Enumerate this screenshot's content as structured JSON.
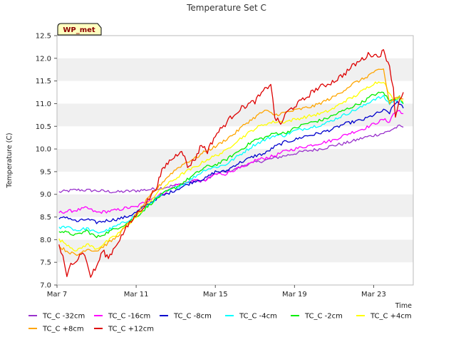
{
  "chart_data": {
    "type": "line",
    "title": "Temperature Set C",
    "xlabel": "Time",
    "ylabel": "Temperature (C)",
    "badge": "WP_met",
    "x_unit": "days since Mar 7",
    "xlim": [
      0,
      18
    ],
    "ylim": [
      7.0,
      12.5
    ],
    "x_ticks": [
      {
        "label": "Mar 7",
        "value": 0
      },
      {
        "label": "Mar 11",
        "value": 4
      },
      {
        "label": "Mar 15",
        "value": 8
      },
      {
        "label": "Mar 19",
        "value": 12
      },
      {
        "label": "Mar 23",
        "value": 16
      }
    ],
    "y_ticks": [
      7.0,
      7.5,
      8.0,
      8.5,
      9.0,
      9.5,
      10.0,
      10.5,
      11.0,
      11.5,
      12.0,
      12.5
    ],
    "grid": "horizontal bands",
    "legend_position": "bottom",
    "series": [
      {
        "name": "TC_C -32cm",
        "color": "#9932cc",
        "points": [
          [
            0.1,
            9.05
          ],
          [
            1,
            9.1
          ],
          [
            2,
            9.08
          ],
          [
            3,
            9.05
          ],
          [
            4,
            9.08
          ],
          [
            5,
            9.12
          ],
          [
            6,
            9.2
          ],
          [
            6.5,
            9.25
          ],
          [
            7,
            9.3
          ],
          [
            7.5,
            9.3
          ],
          [
            8,
            9.45
          ],
          [
            8.5,
            9.5
          ],
          [
            9,
            9.55
          ],
          [
            9.5,
            9.65
          ],
          [
            10,
            9.7
          ],
          [
            10.5,
            9.75
          ],
          [
            11,
            9.8
          ],
          [
            11.5,
            9.85
          ],
          [
            12,
            9.9
          ],
          [
            12.5,
            9.95
          ],
          [
            13,
            9.98
          ],
          [
            13.5,
            10.02
          ],
          [
            14,
            10.08
          ],
          [
            14.5,
            10.12
          ],
          [
            15,
            10.18
          ],
          [
            15.5,
            10.25
          ],
          [
            16,
            10.3
          ],
          [
            16.5,
            10.35
          ],
          [
            16.8,
            10.4
          ],
          [
            17,
            10.45
          ],
          [
            17.3,
            10.5
          ],
          [
            17.5,
            10.48
          ]
        ]
      },
      {
        "name": "TC_C -16cm",
        "color": "#ff00ff",
        "points": [
          [
            0.1,
            8.6
          ],
          [
            1,
            8.65
          ],
          [
            1.5,
            8.7
          ],
          [
            2,
            8.6
          ],
          [
            2.5,
            8.62
          ],
          [
            3,
            8.65
          ],
          [
            3.5,
            8.7
          ],
          [
            4,
            8.72
          ],
          [
            4.5,
            8.85
          ],
          [
            5,
            8.95
          ],
          [
            5.5,
            9.05
          ],
          [
            6,
            9.2
          ],
          [
            6.5,
            9.25
          ],
          [
            7,
            9.3
          ],
          [
            7.5,
            9.3
          ],
          [
            8,
            9.45
          ],
          [
            8.5,
            9.45
          ],
          [
            9,
            9.55
          ],
          [
            9.5,
            9.6
          ],
          [
            10,
            9.75
          ],
          [
            10.5,
            9.8
          ],
          [
            11,
            9.85
          ],
          [
            11.5,
            9.95
          ],
          [
            12,
            10.0
          ],
          [
            12.5,
            10.05
          ],
          [
            13,
            10.1
          ],
          [
            13.5,
            10.15
          ],
          [
            14,
            10.2
          ],
          [
            14.5,
            10.3
          ],
          [
            15,
            10.38
          ],
          [
            15.5,
            10.45
          ],
          [
            16,
            10.55
          ],
          [
            16.5,
            10.65
          ],
          [
            16.8,
            10.6
          ],
          [
            17,
            10.78
          ],
          [
            17.3,
            10.85
          ],
          [
            17.5,
            10.78
          ]
        ]
      },
      {
        "name": "TC_C -8cm",
        "color": "#0000cd",
        "points": [
          [
            0.1,
            8.45
          ],
          [
            0.5,
            8.5
          ],
          [
            1,
            8.4
          ],
          [
            1.5,
            8.45
          ],
          [
            2,
            8.38
          ],
          [
            2.5,
            8.42
          ],
          [
            3,
            8.45
          ],
          [
            3.5,
            8.5
          ],
          [
            4,
            8.6
          ],
          [
            4.5,
            8.75
          ],
          [
            5,
            8.9
          ],
          [
            5.5,
            9.0
          ],
          [
            6,
            9.1
          ],
          [
            6.5,
            9.2
          ],
          [
            7,
            9.3
          ],
          [
            7.5,
            9.35
          ],
          [
            8,
            9.5
          ],
          [
            8.5,
            9.5
          ],
          [
            9,
            9.65
          ],
          [
            9.5,
            9.75
          ],
          [
            10,
            9.85
          ],
          [
            10.5,
            9.9
          ],
          [
            11,
            10.05
          ],
          [
            11.5,
            10.15
          ],
          [
            12,
            10.2
          ],
          [
            12.5,
            10.28
          ],
          [
            13,
            10.32
          ],
          [
            13.5,
            10.38
          ],
          [
            14,
            10.45
          ],
          [
            14.5,
            10.55
          ],
          [
            15,
            10.6
          ],
          [
            15.5,
            10.65
          ],
          [
            16,
            10.75
          ],
          [
            16.5,
            10.85
          ],
          [
            16.8,
            10.8
          ],
          [
            17,
            10.95
          ],
          [
            17.2,
            11.05
          ],
          [
            17.5,
            10.9
          ]
        ]
      },
      {
        "name": "TC_C -4cm",
        "color": "#00ffff",
        "points": [
          [
            0.1,
            8.25
          ],
          [
            0.5,
            8.3
          ],
          [
            1,
            8.2
          ],
          [
            1.5,
            8.25
          ],
          [
            2,
            8.15
          ],
          [
            2.5,
            8.2
          ],
          [
            3,
            8.3
          ],
          [
            3.5,
            8.4
          ],
          [
            4,
            8.55
          ],
          [
            4.5,
            8.72
          ],
          [
            5,
            8.9
          ],
          [
            5.5,
            9.05
          ],
          [
            6,
            9.15
          ],
          [
            6.5,
            9.25
          ],
          [
            7,
            9.4
          ],
          [
            7.5,
            9.55
          ],
          [
            8,
            9.6
          ],
          [
            8.5,
            9.65
          ],
          [
            9,
            9.8
          ],
          [
            9.5,
            9.95
          ],
          [
            10,
            10.1
          ],
          [
            10.5,
            10.2
          ],
          [
            11,
            10.3
          ],
          [
            11.5,
            10.3
          ],
          [
            12,
            10.4
          ],
          [
            12.5,
            10.45
          ],
          [
            13,
            10.5
          ],
          [
            13.5,
            10.55
          ],
          [
            14,
            10.65
          ],
          [
            14.5,
            10.75
          ],
          [
            15,
            10.85
          ],
          [
            15.5,
            10.95
          ],
          [
            16,
            11.1
          ],
          [
            16.5,
            11.15
          ],
          [
            16.8,
            11.0
          ],
          [
            17,
            11.05
          ],
          [
            17.3,
            11.1
          ],
          [
            17.5,
            11.0
          ]
        ]
      },
      {
        "name": "TC_C -2cm",
        "color": "#00ee00",
        "points": [
          [
            0.1,
            8.2
          ],
          [
            0.5,
            8.15
          ],
          [
            1,
            8.1
          ],
          [
            1.5,
            8.2
          ],
          [
            2,
            8.05
          ],
          [
            2.5,
            8.15
          ],
          [
            3,
            8.25
          ],
          [
            3.5,
            8.35
          ],
          [
            4,
            8.5
          ],
          [
            4.5,
            8.7
          ],
          [
            5,
            8.9
          ],
          [
            5.5,
            9.05
          ],
          [
            6,
            9.15
          ],
          [
            6.5,
            9.3
          ],
          [
            7,
            9.45
          ],
          [
            7.5,
            9.6
          ],
          [
            8,
            9.65
          ],
          [
            8.5,
            9.75
          ],
          [
            9,
            9.9
          ],
          [
            9.5,
            10.05
          ],
          [
            10,
            10.2
          ],
          [
            10.5,
            10.25
          ],
          [
            11,
            10.35
          ],
          [
            11.5,
            10.35
          ],
          [
            12,
            10.45
          ],
          [
            12.5,
            10.55
          ],
          [
            13,
            10.6
          ],
          [
            13.5,
            10.65
          ],
          [
            14,
            10.75
          ],
          [
            14.5,
            10.85
          ],
          [
            15,
            10.95
          ],
          [
            15.5,
            11.05
          ],
          [
            16,
            11.2
          ],
          [
            16.5,
            11.25
          ],
          [
            16.8,
            11.05
          ],
          [
            17,
            11.1
          ],
          [
            17.3,
            11.15
          ],
          [
            17.5,
            11.0
          ]
        ]
      },
      {
        "name": "TC_C +4cm",
        "color": "#ffff00",
        "points": [
          [
            0.1,
            8.0
          ],
          [
            0.5,
            7.9
          ],
          [
            1,
            7.75
          ],
          [
            1.5,
            7.9
          ],
          [
            2,
            7.8
          ],
          [
            2.5,
            7.95
          ],
          [
            3,
            8.1
          ],
          [
            3.5,
            8.3
          ],
          [
            4,
            8.5
          ],
          [
            4.5,
            8.75
          ],
          [
            5,
            9.0
          ],
          [
            5.5,
            9.2
          ],
          [
            6,
            9.35
          ],
          [
            6.5,
            9.5
          ],
          [
            7,
            9.6
          ],
          [
            7.5,
            9.75
          ],
          [
            8,
            9.85
          ],
          [
            8.5,
            9.95
          ],
          [
            9,
            10.15
          ],
          [
            9.5,
            10.3
          ],
          [
            10,
            10.45
          ],
          [
            10.5,
            10.55
          ],
          [
            11,
            10.6
          ],
          [
            11.5,
            10.6
          ],
          [
            12,
            10.65
          ],
          [
            12.5,
            10.7
          ],
          [
            13,
            10.75
          ],
          [
            13.5,
            10.8
          ],
          [
            14,
            10.9
          ],
          [
            14.5,
            11.05
          ],
          [
            15,
            11.15
          ],
          [
            15.5,
            11.3
          ],
          [
            16,
            11.45
          ],
          [
            16.5,
            11.5
          ],
          [
            16.8,
            11.2
          ],
          [
            17,
            11.1
          ],
          [
            17.3,
            11.15
          ],
          [
            17.5,
            11.05
          ]
        ]
      },
      {
        "name": "TC_C +8cm",
        "color": "#ffa500",
        "points": [
          [
            0.1,
            7.85
          ],
          [
            0.5,
            7.75
          ],
          [
            1,
            7.65
          ],
          [
            1.5,
            7.8
          ],
          [
            2,
            7.75
          ],
          [
            2.5,
            7.9
          ],
          [
            3,
            8.05
          ],
          [
            3.5,
            8.3
          ],
          [
            4,
            8.55
          ],
          [
            4.5,
            8.85
          ],
          [
            5,
            9.1
          ],
          [
            5.5,
            9.35
          ],
          [
            6,
            9.55
          ],
          [
            6.5,
            9.7
          ],
          [
            7,
            9.8
          ],
          [
            7.5,
            9.95
          ],
          [
            8,
            10.05
          ],
          [
            8.5,
            10.2
          ],
          [
            9,
            10.35
          ],
          [
            9.5,
            10.55
          ],
          [
            10,
            10.7
          ],
          [
            10.5,
            10.85
          ],
          [
            11,
            10.75
          ],
          [
            11.5,
            10.8
          ],
          [
            12,
            10.85
          ],
          [
            12.5,
            10.9
          ],
          [
            13,
            10.95
          ],
          [
            13.5,
            11.05
          ],
          [
            14,
            11.15
          ],
          [
            14.5,
            11.3
          ],
          [
            15,
            11.45
          ],
          [
            15.5,
            11.55
          ],
          [
            16,
            11.7
          ],
          [
            16.5,
            11.75
          ],
          [
            16.8,
            11.0
          ],
          [
            17,
            11.1
          ],
          [
            17.3,
            11.15
          ],
          [
            17.5,
            11.1
          ]
        ]
      },
      {
        "name": "TC_C +12cm",
        "color": "#dd0000",
        "points": [
          [
            0.1,
            7.85
          ],
          [
            0.3,
            7.6
          ],
          [
            0.5,
            7.15
          ],
          [
            0.7,
            7.5
          ],
          [
            1,
            7.55
          ],
          [
            1.3,
            7.75
          ],
          [
            1.5,
            7.5
          ],
          [
            1.7,
            7.2
          ],
          [
            2,
            7.4
          ],
          [
            2.3,
            7.75
          ],
          [
            2.6,
            7.6
          ],
          [
            3,
            7.9
          ],
          [
            3.5,
            8.25
          ],
          [
            4,
            8.55
          ],
          [
            4.5,
            8.8
          ],
          [
            5,
            9.15
          ],
          [
            5.3,
            9.5
          ],
          [
            5.6,
            9.7
          ],
          [
            6,
            9.85
          ],
          [
            6.3,
            10.0
          ],
          [
            6.6,
            9.6
          ],
          [
            7,
            9.8
          ],
          [
            7.3,
            10.1
          ],
          [
            7.6,
            9.95
          ],
          [
            8,
            10.3
          ],
          [
            8.5,
            10.55
          ],
          [
            9,
            10.8
          ],
          [
            9.5,
            10.95
          ],
          [
            10,
            11.05
          ],
          [
            10.5,
            11.3
          ],
          [
            10.8,
            11.45
          ],
          [
            11,
            10.7
          ],
          [
            11.3,
            10.55
          ],
          [
            11.6,
            10.8
          ],
          [
            12,
            10.95
          ],
          [
            12.5,
            11.1
          ],
          [
            13,
            11.3
          ],
          [
            13.5,
            11.4
          ],
          [
            14,
            11.5
          ],
          [
            14.5,
            11.65
          ],
          [
            15,
            11.85
          ],
          [
            15.5,
            12.0
          ],
          [
            15.8,
            12.1
          ],
          [
            16.2,
            12.05
          ],
          [
            16.5,
            12.15
          ],
          [
            16.8,
            11.85
          ],
          [
            17.0,
            11.3
          ],
          [
            17.1,
            10.7
          ],
          [
            17.3,
            11.1
          ],
          [
            17.5,
            11.25
          ]
        ]
      }
    ]
  }
}
